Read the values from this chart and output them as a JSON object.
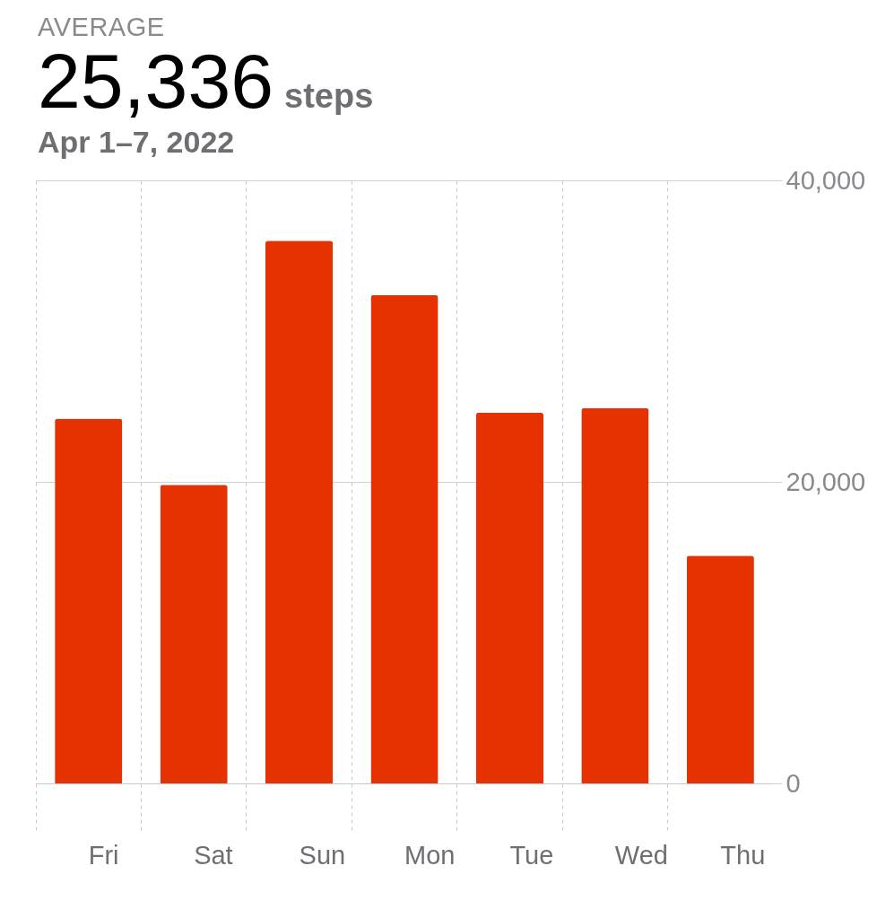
{
  "chart_data": {
    "type": "bar",
    "title": "AVERAGE",
    "subtitle": "Apr 1–7, 2022",
    "annotations": [
      "25,336",
      "steps"
    ],
    "categories": [
      "Fri",
      "Sat",
      "Sun",
      "Mon",
      "Tue",
      "Wed",
      "Thu"
    ],
    "values": [
      24200,
      19800,
      36000,
      32400,
      24600,
      24900,
      15100
    ],
    "color": "#e63200",
    "ylim": [
      0,
      40000
    ],
    "yticks": [
      0,
      {
        "value": 20000,
        "label": "20,000"
      },
      {
        "value": 40000,
        "label": "40,000"
      }
    ],
    "grid": true
  }
}
